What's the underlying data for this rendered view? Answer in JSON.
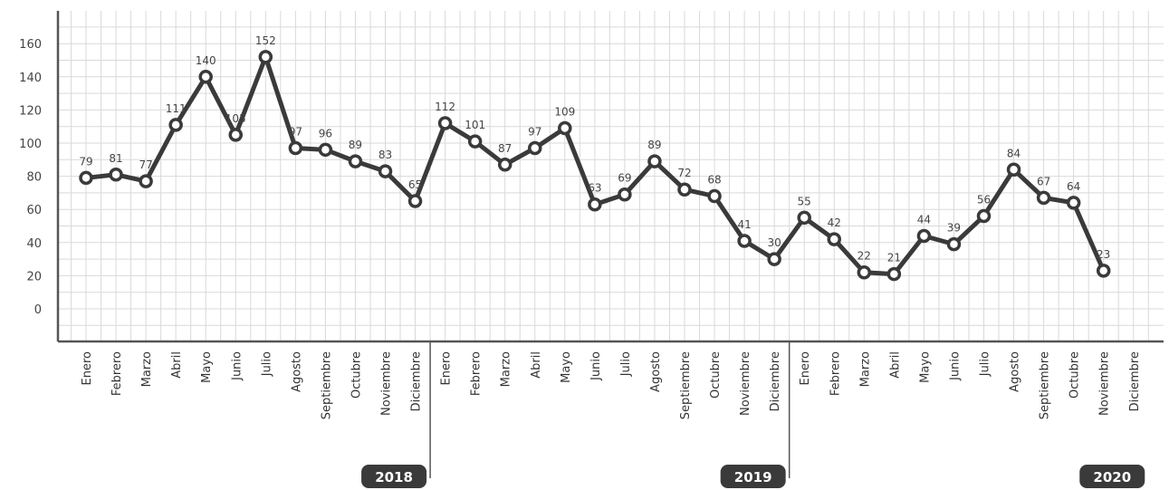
{
  "chart_data": {
    "type": "line",
    "x": [
      "Enero",
      "Febrero",
      "Marzo",
      "Abril",
      "Mayo",
      "Junio",
      "Julio",
      "Agosto",
      "Septiembre",
      "Octubre",
      "Noviembre",
      "Diciembre",
      "Enero",
      "Febrero",
      "Marzo",
      "Abril",
      "Mayo",
      "Junio",
      "Julio",
      "Agosto",
      "Septiembre",
      "Octubre",
      "Noviembre",
      "Diciembre",
      "Enero",
      "Febrero",
      "Marzo",
      "Abril",
      "Mayo",
      "Junio",
      "Julio",
      "Agosto",
      "Septiembre",
      "Octubre",
      "Noviembre",
      "Diciembre"
    ],
    "values": [
      79,
      81,
      77,
      111,
      140,
      105,
      152,
      97,
      96,
      89,
      83,
      65,
      112,
      101,
      87,
      97,
      109,
      63,
      69,
      89,
      72,
      68,
      41,
      30,
      55,
      42,
      22,
      21,
      44,
      39,
      56,
      84,
      67,
      64,
      23,
      null
    ],
    "data_labels": [
      "79",
      "81",
      "77",
      "111",
      "140",
      "105",
      "152",
      "97",
      "96",
      "89",
      "83",
      "65",
      "112",
      "101",
      "87",
      "97",
      "109",
      "63",
      "69",
      "89",
      "72",
      "68",
      "41",
      "30",
      "55",
      "42",
      "22",
      "21",
      "44",
      "39",
      "56",
      "84",
      "67",
      "64",
      "23",
      ""
    ],
    "groups": [
      {
        "label": "2018",
        "start": 0,
        "end": 11
      },
      {
        "label": "2019",
        "start": 12,
        "end": 23
      },
      {
        "label": "2020",
        "start": 24,
        "end": 35
      }
    ],
    "y_ticks": [
      0,
      20,
      40,
      60,
      80,
      100,
      120,
      140,
      160
    ],
    "ylim": [
      -20,
      175
    ],
    "grid": true,
    "title": "",
    "xlabel": "",
    "ylabel": "",
    "colors": {
      "line": "#3a3a3a",
      "grid": "#d9d9d9",
      "axis": "#555555",
      "badge": "#3a3a3a"
    }
  }
}
